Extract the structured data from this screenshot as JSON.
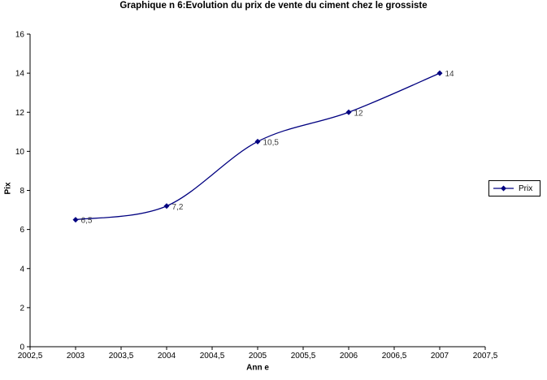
{
  "chart_data": {
    "type": "line",
    "title": "Graphique n 6:Evolution du prix de vente du ciment chez le grossiste",
    "xlabel": "Ann e",
    "ylabel": "Pix",
    "x": [
      2003,
      2004,
      2005,
      2006,
      2007
    ],
    "series": [
      {
        "name": "Prix",
        "values": [
          6.5,
          7.2,
          10.5,
          12,
          14
        ],
        "point_labels": [
          "6,5",
          "7,2",
          "10,5",
          "12",
          "14"
        ],
        "color": "#000080",
        "marker": "diamond",
        "smoothed": true
      }
    ],
    "xlim": [
      2002.5,
      2007.5
    ],
    "ylim": [
      0,
      16
    ],
    "xticks": [
      2002.5,
      2003,
      2003.5,
      2004,
      2004.5,
      2005,
      2005.5,
      2006,
      2006.5,
      2007,
      2007.5
    ],
    "xtick_labels": [
      "2002,5",
      "2003",
      "2003,5",
      "2004",
      "2004,5",
      "2005",
      "2005,5",
      "2006",
      "2006,5",
      "2007",
      "2007,5"
    ],
    "yticks": [
      0,
      2,
      4,
      6,
      8,
      10,
      12,
      14,
      16
    ],
    "ytick_labels": [
      "0",
      "2",
      "4",
      "6",
      "8",
      "10",
      "12",
      "14",
      "16"
    ],
    "grid": false,
    "legend": {
      "position": "right",
      "entries": [
        "Prix"
      ]
    }
  },
  "colors": {
    "series": "#000080",
    "axis": "#000000",
    "tick_text": "#000000",
    "data_label_text": "#404040",
    "background": "#ffffff"
  }
}
